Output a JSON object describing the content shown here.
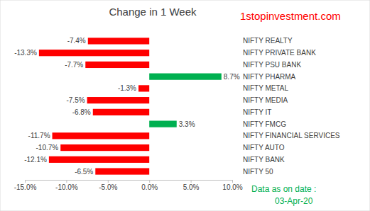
{
  "chart_data": {
    "type": "bar",
    "title": "Change in 1 Week",
    "orientation": "horizontal",
    "categories": [
      "NIFTY REALTY",
      "NIFTY PRIVATE BANK",
      "NIFTY PSU BANK",
      "NIFTY PHARMA",
      "NIFTY METAL",
      "NIFTY MEDIA",
      "NIFTY IT",
      "NIFTY FMCG",
      "NIFTY FINANCIAL SERVICES",
      "NIFTY AUTO",
      "NIFTY BANK",
      "NIFTY 50"
    ],
    "values": [
      -7.4,
      -13.3,
      -7.7,
      8.7,
      -1.3,
      -7.5,
      -6.8,
      3.3,
      -11.7,
      -10.7,
      -12.1,
      -6.5
    ],
    "value_labels": [
      "-7.4%",
      "-13.3%",
      "-7.7%",
      "8.7%",
      "-1.3%",
      "-7.5%",
      "-6.8%",
      "3.3%",
      "-11.7%",
      "-10.7%",
      "-12.1%",
      "-6.5%"
    ],
    "colors": [
      "#ff0000",
      "#ff0000",
      "#ff0000",
      "#00b050",
      "#ff0000",
      "#ff0000",
      "#ff0000",
      "#00b050",
      "#ff0000",
      "#ff0000",
      "#ff0000",
      "#ff0000"
    ],
    "data_labels": true,
    "grid": false,
    "xlim": [
      -15,
      10
    ],
    "xticks": [
      {
        "value": -15,
        "label": "-15.0%"
      },
      {
        "value": -10,
        "label": "-10.0%"
      },
      {
        "value": -5,
        "label": "-5.0%"
      },
      {
        "value": 0,
        "label": "0.0%"
      },
      {
        "value": 5,
        "label": "5.0%"
      },
      {
        "value": 10,
        "label": "10.0%"
      }
    ],
    "annotations": [
      "1stopinvestment.com",
      "Data as on date :",
      "03-Apr-20"
    ]
  }
}
